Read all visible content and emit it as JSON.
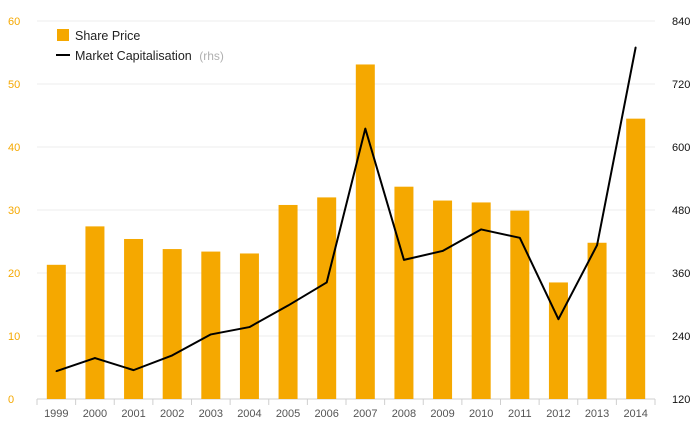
{
  "chart_data": {
    "type": "bar",
    "categories": [
      "1999",
      "2000",
      "2001",
      "2002",
      "2003",
      "2004",
      "2005",
      "2006",
      "2007",
      "2008",
      "2009",
      "2010",
      "2011",
      "2012",
      "2013",
      "2014"
    ],
    "series": [
      {
        "name": "Share Price",
        "type": "bar",
        "axis": "left",
        "color": "#f5a800",
        "values": [
          21.3,
          27.4,
          25.4,
          23.8,
          23.4,
          23.1,
          30.8,
          32.0,
          53.1,
          33.7,
          31.5,
          31.2,
          29.9,
          18.5,
          24.8,
          44.5
        ]
      },
      {
        "name": "Market Capitalisation",
        "type": "line",
        "axis": "right",
        "color": "#000000",
        "values": [
          173,
          198,
          175,
          203,
          243,
          257,
          298,
          342,
          635,
          385,
          402,
          443,
          427,
          272,
          413,
          790
        ]
      }
    ],
    "y_left": {
      "min": 0,
      "max": 60,
      "ticks": [
        0,
        10,
        20,
        30,
        40,
        50,
        60
      ],
      "color": "#f5a800"
    },
    "y_right": {
      "min": 120,
      "max": 840,
      "ticks": [
        120,
        240,
        360,
        480,
        600,
        720,
        840
      ],
      "color": "#111111"
    },
    "legend": {
      "position": "top-left",
      "items": [
        {
          "label": "Share Price",
          "note": "",
          "marker": "square"
        },
        {
          "label": "Market Capitalisation",
          "note": "(rhs)",
          "marker": "line"
        }
      ]
    },
    "grid": true,
    "title": "",
    "xlabel": "",
    "ylabel": ""
  }
}
